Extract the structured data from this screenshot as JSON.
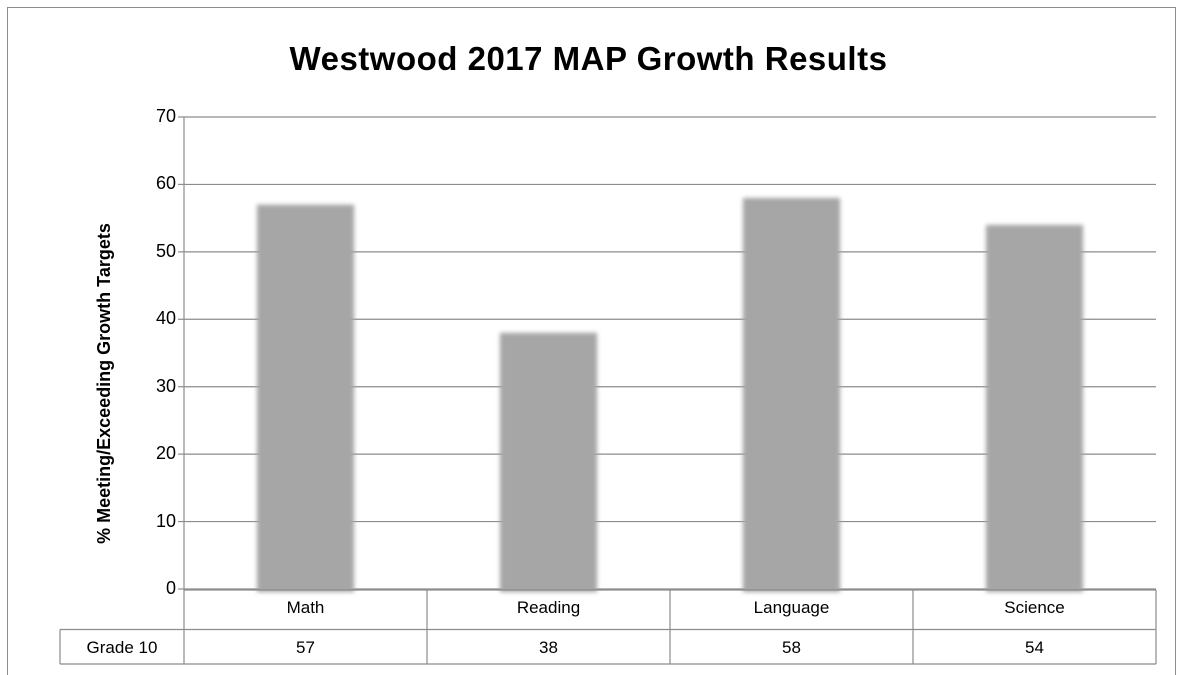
{
  "chart_data": {
    "type": "bar",
    "title": "Westwood 2017 MAP Growth Results",
    "ylabel": "% Meeting/Exceeding Growth Targets",
    "xlabel": "",
    "ylim": [
      0,
      70
    ],
    "yticks": [
      0,
      10,
      20,
      30,
      40,
      50,
      60,
      70
    ],
    "grid": true,
    "legend": "none",
    "categories": [
      "Math",
      "Reading",
      "Language",
      "Science"
    ],
    "series": [
      {
        "name": "Grade 10",
        "values": [
          57,
          38,
          58,
          54
        ]
      }
    ],
    "data_table": true,
    "bar_color": "#a6a6a6",
    "grid_color": "#8c8c8c"
  }
}
